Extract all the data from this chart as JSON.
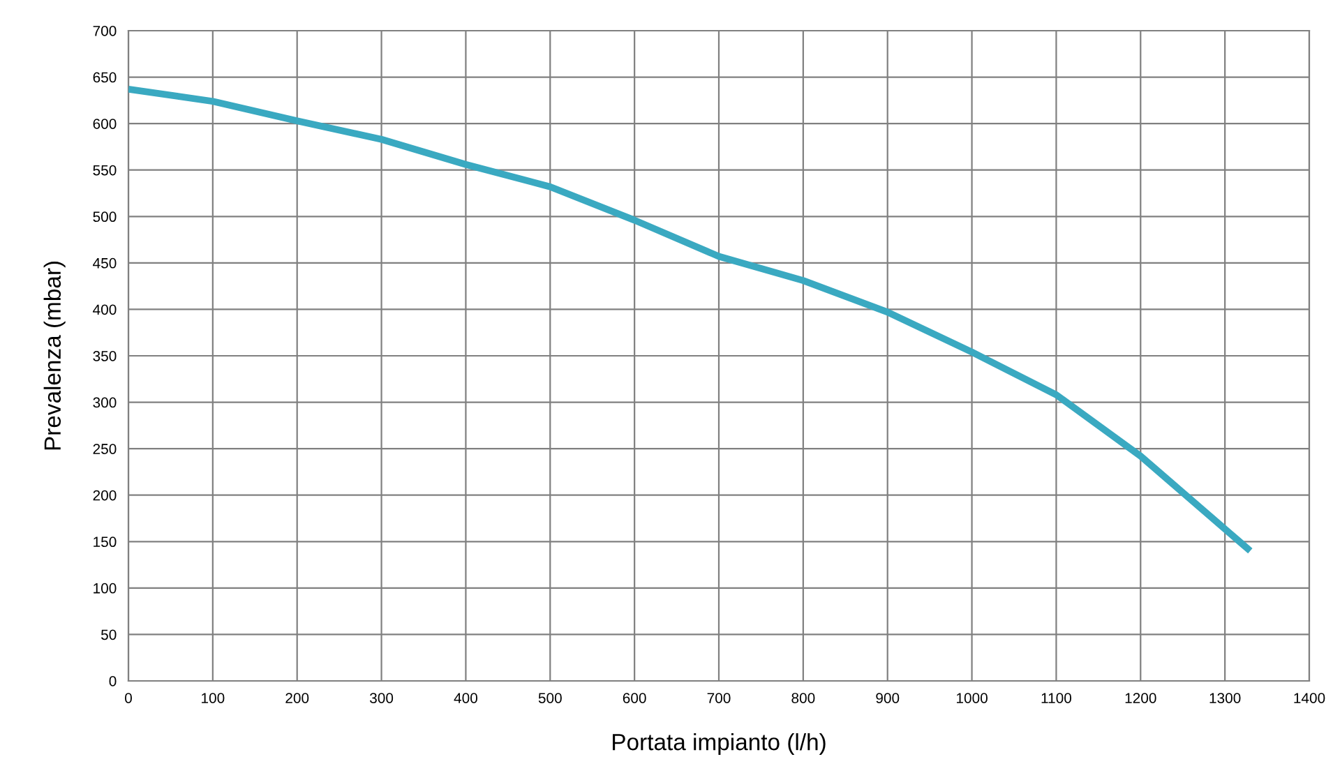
{
  "chart_data": {
    "type": "line",
    "xlabel": "Portata impianto (l/h)",
    "ylabel": "Prevalenza (mbar)",
    "series": [
      {
        "color": "#3aa9c1",
        "x": [
          0,
          100,
          200,
          300,
          400,
          500,
          600,
          700,
          800,
          900,
          1000,
          1100,
          1200,
          1330
        ],
        "values": [
          637,
          624,
          603,
          583,
          556,
          532,
          496,
          457,
          431,
          397,
          354,
          308,
          242,
          140
        ]
      }
    ],
    "xlim": [
      0,
      1400
    ],
    "ylim": [
      0,
      700
    ],
    "xticks": [
      0,
      100,
      200,
      300,
      400,
      500,
      600,
      700,
      800,
      900,
      1000,
      1100,
      1200,
      1300,
      1400
    ],
    "yticks": [
      0,
      50,
      100,
      150,
      200,
      250,
      300,
      350,
      400,
      450,
      500,
      550,
      600,
      650,
      700
    ],
    "grid": true,
    "marker": "none",
    "line_style": "solid"
  }
}
